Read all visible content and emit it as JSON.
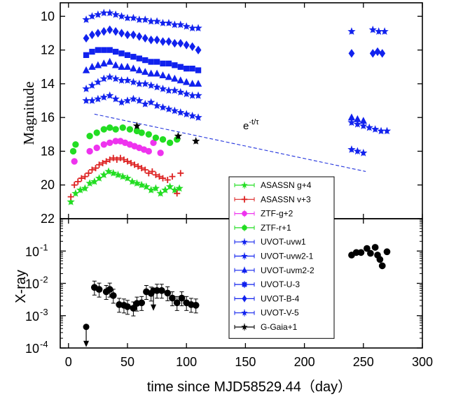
{
  "chart_data": [
    {
      "panel": "top",
      "type": "scatter",
      "xlabel": "",
      "ylabel": "Magnitude",
      "xlim": [
        -7,
        300
      ],
      "ylim": [
        22,
        9.2
      ],
      "y_reversed": true,
      "x_ticks": [
        0,
        50,
        100,
        150,
        200,
        250,
        300
      ],
      "y_ticks": [
        10,
        12,
        14,
        16,
        18,
        20,
        22
      ],
      "y_tick_labels": [
        "10",
        "12",
        "14",
        "16",
        "18",
        "20",
        "22"
      ],
      "annotation": {
        "text": "e^{-t/τ}",
        "base": "e",
        "sup": "-t/τ",
        "x": 148,
        "y": 16.7
      },
      "fit_line": {
        "name": "",
        "x": [
          22,
          252
        ],
        "y": [
          15.8,
          19.2
        ],
        "color": "#2233dd"
      },
      "series": [
        {
          "name": "ASASSN g+4",
          "marker": "star",
          "color": "#22dd22",
          "errorbars": true,
          "x": [
            2,
            6,
            10,
            14,
            18,
            22,
            26,
            30,
            34,
            38,
            42,
            46,
            50,
            54,
            58,
            62,
            66,
            70,
            74,
            78,
            82,
            86,
            90,
            94
          ],
          "y": [
            21.0,
            20.5,
            20.3,
            20.2,
            19.9,
            19.8,
            19.6,
            19.4,
            19.2,
            19.3,
            19.4,
            19.5,
            19.6,
            19.8,
            19.9,
            20.0,
            20.1,
            20.3,
            20.2,
            20.5,
            20.3,
            20.1,
            20.3,
            20.2
          ]
        },
        {
          "name": "ASASSN v+3",
          "marker": "plus",
          "color": "#dd2222",
          "errorbars": true,
          "x": [
            2,
            5,
            8,
            11,
            14,
            17,
            20,
            23,
            26,
            29,
            32,
            35,
            38,
            41,
            44,
            47,
            50,
            53,
            56,
            59,
            62,
            65,
            68,
            71,
            74,
            77,
            80,
            84,
            88,
            92,
            95
          ],
          "y": [
            20.7,
            20.0,
            19.8,
            19.6,
            19.5,
            19.3,
            19.1,
            19.0,
            18.8,
            18.7,
            18.6,
            18.5,
            18.4,
            18.5,
            18.4,
            18.5,
            18.6,
            18.7,
            18.8,
            18.9,
            19.0,
            19.1,
            19.3,
            19.2,
            19.4,
            19.5,
            19.6,
            19.7,
            19.5,
            20.5,
            19.3
          ]
        },
        {
          "name": "ZTF-g+2",
          "marker": "circle",
          "color": "#ee33ee",
          "errorbars": true,
          "x": [
            5,
            18,
            24,
            30,
            35,
            40,
            44,
            48,
            52,
            56,
            60,
            64,
            68,
            72,
            78
          ],
          "y": [
            18.6,
            18.0,
            17.8,
            17.6,
            17.5,
            17.4,
            17.4,
            17.5,
            17.6,
            17.7,
            17.8,
            17.9,
            18.0,
            17.5,
            18.1
          ]
        },
        {
          "name": "ZTF-r+1",
          "marker": "circle",
          "color": "#22dd22",
          "errorbars": true,
          "x": [
            4,
            6,
            18,
            24,
            30,
            35,
            40,
            46,
            52,
            58,
            62,
            68,
            74,
            80,
            86,
            92
          ],
          "y": [
            18.0,
            17.6,
            17.1,
            16.9,
            16.7,
            16.6,
            16.7,
            16.6,
            16.7,
            16.8,
            16.9,
            17.0,
            17.2,
            17.3,
            17.5,
            17.3
          ]
        },
        {
          "name": "UVOT-uvw1",
          "marker": "star",
          "color": "#1122ee",
          "errorbars": true,
          "x": [
            15,
            20,
            25,
            30,
            35,
            40,
            45,
            50,
            55,
            60,
            65,
            70,
            75,
            80,
            85,
            90,
            95,
            100,
            105,
            110,
            240,
            245,
            250,
            255,
            260,
            265,
            270
          ],
          "y": [
            15.0,
            15.0,
            14.9,
            14.8,
            14.7,
            14.9,
            15.1,
            15.0,
            14.9,
            15.0,
            15.2,
            15.1,
            15.3,
            15.4,
            15.5,
            15.6,
            15.7,
            15.8,
            15.9,
            16.0,
            16.3,
            16.4,
            16.5,
            16.6,
            16.7,
            16.8,
            16.8
          ]
        },
        {
          "name": "UVOT-uvw2-1",
          "marker": "star",
          "color": "#1122ee",
          "errorbars": true,
          "x": [
            15,
            20,
            25,
            30,
            35,
            40,
            45,
            50,
            55,
            60,
            65,
            70,
            75,
            80,
            85,
            90,
            95,
            100,
            105,
            110,
            240,
            245,
            250
          ],
          "y": [
            14.3,
            14.1,
            13.9,
            13.7,
            13.6,
            13.7,
            13.8,
            13.8,
            13.9,
            14.0,
            14.0,
            14.1,
            14.2,
            14.3,
            14.4,
            14.4,
            14.5,
            14.6,
            14.7,
            14.7,
            17.9,
            18.0,
            18.1
          ]
        },
        {
          "name": "UVOT-uvm2-2",
          "marker": "triangle",
          "color": "#1122ee",
          "errorbars": true,
          "x": [
            15,
            20,
            25,
            30,
            35,
            40,
            45,
            50,
            55,
            60,
            65,
            70,
            75,
            80,
            85,
            90,
            95,
            100,
            105,
            110,
            240,
            245,
            250
          ],
          "y": [
            13.2,
            13.0,
            12.9,
            12.8,
            12.7,
            12.9,
            13.0,
            13.0,
            13.1,
            13.2,
            13.3,
            13.4,
            13.4,
            13.5,
            13.6,
            13.7,
            13.8,
            13.9,
            14.0,
            14.0,
            16.0,
            16.1,
            16.2
          ]
        },
        {
          "name": "UVOT-U-3",
          "marker": "square",
          "color": "#1122ee",
          "errorbars": true,
          "x": [
            15,
            20,
            25,
            30,
            35,
            40,
            45,
            50,
            55,
            60,
            65,
            70,
            75,
            80,
            85,
            90,
            95,
            100,
            105,
            110
          ],
          "y": [
            12.3,
            12.1,
            12.0,
            12.0,
            12.0,
            12.1,
            12.2,
            12.3,
            12.4,
            12.5,
            12.6,
            12.7,
            12.7,
            12.8,
            12.8,
            12.9,
            13.0,
            13.1,
            13.1,
            13.2
          ]
        },
        {
          "name": "UVOT-B-4",
          "marker": "diamond",
          "color": "#1122ee",
          "errorbars": true,
          "x": [
            15,
            20,
            25,
            30,
            35,
            40,
            45,
            50,
            55,
            60,
            65,
            70,
            75,
            80,
            85,
            90,
            95,
            100,
            105,
            110,
            240,
            258,
            262,
            266
          ],
          "y": [
            11.3,
            11.1,
            11.0,
            10.9,
            10.8,
            10.9,
            11.0,
            11.1,
            11.1,
            11.2,
            11.3,
            11.4,
            11.4,
            11.5,
            11.5,
            11.6,
            11.6,
            11.7,
            11.8,
            12.0,
            12.2,
            12.2,
            12.1,
            12.2
          ]
        },
        {
          "name": "UVOT-V-5",
          "marker": "star",
          "color": "#1122ee",
          "errorbars": true,
          "x": [
            15,
            20,
            25,
            30,
            35,
            40,
            45,
            50,
            55,
            60,
            65,
            70,
            75,
            80,
            85,
            90,
            95,
            100,
            105,
            110,
            240,
            258,
            263,
            268
          ],
          "y": [
            10.2,
            10.0,
            9.9,
            9.8,
            9.8,
            9.9,
            10.0,
            10.1,
            10.1,
            10.2,
            10.2,
            10.3,
            10.3,
            10.4,
            10.4,
            10.5,
            10.5,
            10.6,
            10.7,
            10.7,
            10.9,
            10.8,
            10.9,
            10.9
          ]
        },
        {
          "name": "G-Gaia+1",
          "marker": "star",
          "color": "#000000",
          "errorbars": true,
          "x": [
            58,
            93,
            108
          ],
          "y": [
            16.5,
            17.1,
            17.4
          ]
        }
      ]
    },
    {
      "panel": "bottom",
      "type": "scatter",
      "xlabel": "time since MJD58529.44（day）",
      "ylabel": "X-ray",
      "xlim": [
        -7,
        300
      ],
      "ylim": [
        0.0001,
        1
      ],
      "yscale": "log",
      "x_ticks": [
        0,
        50,
        100,
        150,
        200,
        250,
        300
      ],
      "x_tick_labels": [
        "0",
        "50",
        "100",
        "150",
        "200",
        "250",
        "300"
      ],
      "y_ticks": [
        0.0001,
        0.001,
        0.01,
        0.1
      ],
      "y_tick_labels": [
        {
          "base": "10",
          "exp": "-4"
        },
        {
          "base": "10",
          "exp": "-3"
        },
        {
          "base": "10",
          "exp": "-2"
        },
        {
          "base": "10",
          "exp": "-1"
        }
      ],
      "series": [
        {
          "name": "",
          "marker": "circle",
          "color": "#000000",
          "errorbars": true,
          "x": [
            22,
            26,
            32,
            35,
            38,
            43,
            47,
            50,
            55,
            58,
            62,
            66,
            70,
            75,
            79,
            84,
            88,
            92,
            96,
            100,
            104,
            108
          ],
          "y": [
            0.0075,
            0.0065,
            0.0055,
            0.0065,
            0.0042,
            0.0022,
            0.0021,
            0.0019,
            0.0017,
            0.0024,
            0.0025,
            0.0055,
            0.0049,
            0.006,
            0.006,
            0.005,
            0.0035,
            0.0025,
            0.0035,
            0.0025,
            0.0022,
            0.0021
          ]
        },
        {
          "name": "",
          "marker": "circle",
          "color": "#000000",
          "errorbars": false,
          "x": [
            240,
            244,
            248,
            253,
            256,
            260,
            262,
            264,
            266,
            270
          ],
          "y": [
            0.075,
            0.09,
            0.09,
            0.12,
            0.085,
            0.13,
            0.075,
            0.055,
            0.035,
            0.095
          ]
        }
      ],
      "upper_limits": [
        {
          "x": 15,
          "y": 0.00045
        },
        {
          "x": 72,
          "y": 0.006
        }
      ]
    }
  ],
  "legend": {
    "placement": "bottom-center of top panel, overlapping lower panel",
    "entries": [
      {
        "label": "ASASSN g+4",
        "marker": "star",
        "color": "#22dd22"
      },
      {
        "label": "ASASSN v+3",
        "marker": "plus",
        "color": "#dd2222"
      },
      {
        "label": "ZTF-g+2",
        "marker": "circle",
        "color": "#ee33ee"
      },
      {
        "label": "ZTF-r+1",
        "marker": "circle",
        "color": "#22dd22"
      },
      {
        "label": "UVOT-uvw1",
        "marker": "star",
        "color": "#1122ee"
      },
      {
        "label": "UVOT-uvw2-1",
        "marker": "star",
        "color": "#1122ee"
      },
      {
        "label": "UVOT-uvm2-2",
        "marker": "triangle",
        "color": "#1122ee"
      },
      {
        "label": "UVOT-U-3",
        "marker": "square",
        "color": "#1122ee"
      },
      {
        "label": "UVOT-B-4",
        "marker": "diamond",
        "color": "#1122ee"
      },
      {
        "label": "UVOT-V-5",
        "marker": "star",
        "color": "#1122ee"
      },
      {
        "label": "G-Gaia+1",
        "marker": "star",
        "color": "#000000"
      }
    ]
  }
}
